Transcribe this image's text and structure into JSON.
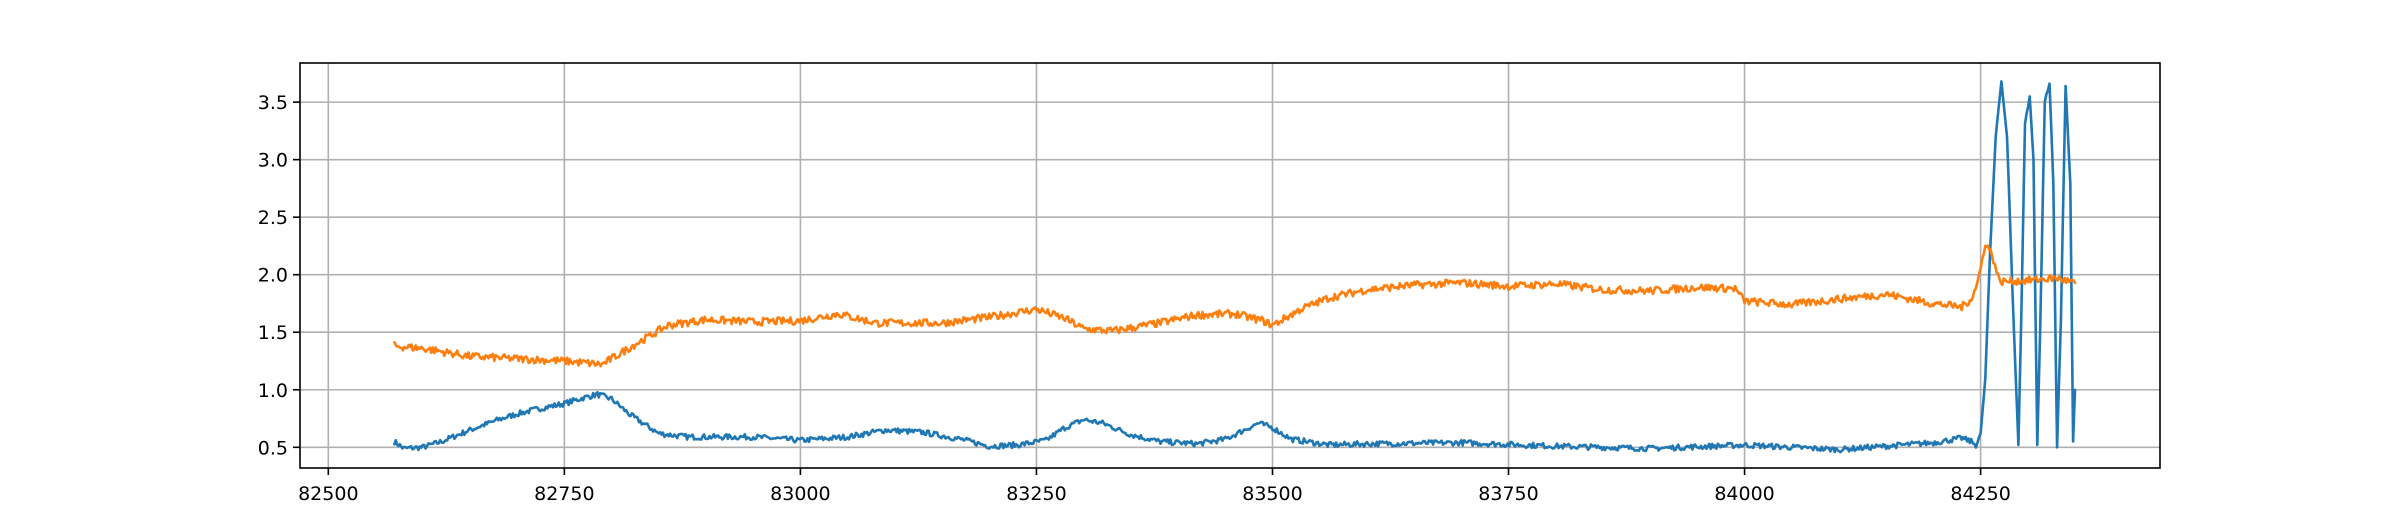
{
  "chart_data": {
    "type": "line",
    "title": "",
    "xlabel": "",
    "ylabel": "",
    "xlim": [
      82470,
      84440
    ],
    "ylim": [
      0.32,
      3.84
    ],
    "grid": true,
    "legend": "none",
    "x_ticks": [
      82500,
      82750,
      83000,
      83250,
      83500,
      83750,
      84000,
      84250
    ],
    "x_tick_labels": [
      "82500",
      "82750",
      "83000",
      "83250",
      "83500",
      "83750",
      "84000",
      "84250"
    ],
    "y_ticks": [
      0.5,
      1.0,
      1.5,
      2.0,
      2.5,
      3.0,
      3.5
    ],
    "y_tick_labels": [
      "0.5",
      "1.0",
      "1.5",
      "2.0",
      "2.5",
      "3.0",
      "3.5"
    ],
    "noise": 0.015,
    "series": [
      {
        "color": "#1f77b4",
        "x": [
          82570,
          82580,
          82600,
          82620,
          82650,
          82680,
          82700,
          82720,
          82750,
          82770,
          82785,
          82800,
          82820,
          82850,
          82880,
          82950,
          83000,
          83050,
          83090,
          83130,
          83170,
          83200,
          83230,
          83260,
          83280,
          83300,
          83320,
          83350,
          83380,
          83420,
          83450,
          83470,
          83485,
          83500,
          83520,
          83560,
          83600,
          83700,
          83800,
          83900,
          84000,
          84050,
          84100,
          84150,
          84200,
          84230,
          84240,
          84245,
          84250,
          84255,
          84260,
          84266,
          84272,
          84278,
          84284,
          84290,
          84293,
          84297,
          84302,
          84306,
          84310,
          84313,
          84318,
          84323,
          84327,
          84331,
          84335,
          84340,
          84345,
          84348,
          84350
        ],
        "y": [
          0.55,
          0.49,
          0.5,
          0.55,
          0.65,
          0.74,
          0.79,
          0.83,
          0.88,
          0.93,
          0.96,
          0.92,
          0.78,
          0.62,
          0.59,
          0.59,
          0.56,
          0.59,
          0.65,
          0.63,
          0.57,
          0.51,
          0.52,
          0.56,
          0.67,
          0.74,
          0.71,
          0.61,
          0.55,
          0.53,
          0.57,
          0.65,
          0.71,
          0.67,
          0.57,
          0.52,
          0.53,
          0.54,
          0.51,
          0.49,
          0.52,
          0.5,
          0.48,
          0.51,
          0.54,
          0.58,
          0.55,
          0.52,
          0.62,
          1.1,
          2.2,
          3.2,
          3.68,
          3.2,
          1.8,
          0.52,
          1.6,
          3.3,
          3.55,
          3.0,
          0.52,
          1.5,
          3.5,
          3.66,
          2.8,
          0.5,
          1.6,
          3.64,
          2.8,
          0.55,
          1.0
        ]
      },
      {
        "color": "#ff7f0e",
        "x": [
          82570,
          82600,
          82650,
          82700,
          82750,
          82790,
          82800,
          82830,
          82860,
          82900,
          82950,
          83000,
          83040,
          83080,
          83150,
          83200,
          83250,
          83280,
          83300,
          83330,
          83380,
          83420,
          83460,
          83490,
          83500,
          83530,
          83560,
          83600,
          83650,
          83700,
          83750,
          83800,
          83850,
          83900,
          83950,
          83990,
          84000,
          84050,
          84100,
          84150,
          84200,
          84230,
          84240,
          84245,
          84250,
          84255,
          84262,
          84270,
          84300,
          84330,
          84345,
          84350
        ],
        "y": [
          1.38,
          1.36,
          1.29,
          1.27,
          1.25,
          1.22,
          1.27,
          1.42,
          1.56,
          1.61,
          1.59,
          1.6,
          1.66,
          1.58,
          1.58,
          1.63,
          1.7,
          1.62,
          1.53,
          1.51,
          1.58,
          1.65,
          1.66,
          1.6,
          1.56,
          1.7,
          1.8,
          1.87,
          1.91,
          1.93,
          1.9,
          1.92,
          1.87,
          1.86,
          1.89,
          1.88,
          1.77,
          1.74,
          1.79,
          1.83,
          1.75,
          1.72,
          1.79,
          1.88,
          2.05,
          2.28,
          2.18,
          1.94,
          1.95,
          1.97,
          1.94,
          1.93
        ]
      }
    ]
  }
}
